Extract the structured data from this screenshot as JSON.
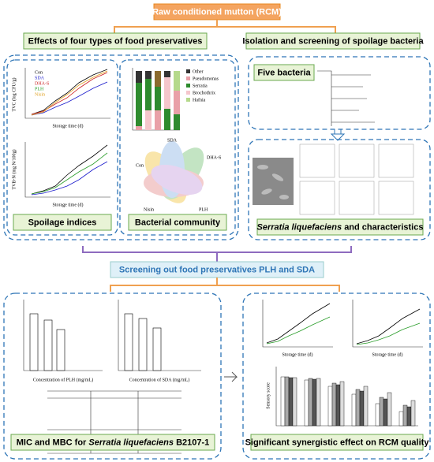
{
  "header": {
    "title": "Raw conditioned mutton (RCM)"
  },
  "left_section": {
    "title": "Effects of four types of food preservatives",
    "spoilage_indices": {
      "label": "Spoilage indices",
      "y_labels": [
        "TVC (log CFU/g)",
        "TVB-N (mg N/100g)"
      ],
      "x_labels": [
        "Storage time (d)",
        "Storage time (d)"
      ],
      "legend": [
        "Con",
        "SDA",
        "DHA-S",
        "PLH",
        "Nisin"
      ]
    },
    "bacterial_community": {
      "label": "Bacterial community",
      "legend": [
        "Other",
        "Pseudomonas",
        "Serratia",
        "Brochothrix",
        "Hafnia"
      ],
      "venn_labels": [
        "Con",
        "SDA",
        "DHA-S",
        "PLH",
        "Nisin"
      ]
    }
  },
  "right_section": {
    "title": "Isolation and screening of spoilage bacteria",
    "five_bacteria": {
      "label": "Five bacteria"
    },
    "characteristics": {
      "label_italic": "Serratia liquefaciens",
      "label_rest": "and characteristics"
    }
  },
  "middle": {
    "title": "Screening out food preservatives PLH and SDA"
  },
  "bottom_left": {
    "label_prefix": "MIC and MBC for",
    "label_italic": "Serratia liquefaciens",
    "label_rest": "B2107-1",
    "x_labels": [
      "Concentration of PLH (mg/mL)",
      "Concentration of SDA (mg/mL)"
    ]
  },
  "bottom_right": {
    "label": "Significant synergistic effect on RCM quality",
    "x_labels": [
      "Storage time (d)",
      "Storage time (d)"
    ],
    "y_label": "Sensory score"
  }
}
